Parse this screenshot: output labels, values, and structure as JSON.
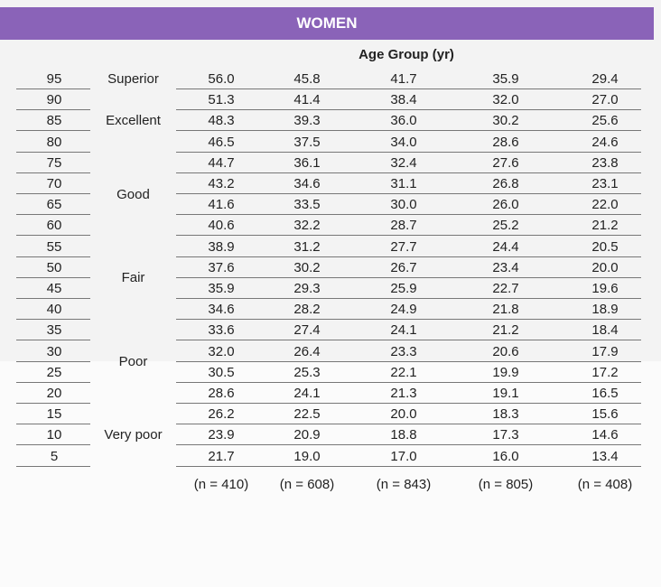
{
  "header": {
    "title": "WOMEN",
    "subtitle": "Age Group (yr)"
  },
  "table": {
    "rows": [
      {
        "percentile": 95,
        "rating": "Superior",
        "values": [
          "56.0",
          "45.8",
          "41.7",
          "35.9",
          "29.4"
        ]
      },
      {
        "percentile": 90,
        "rating": "Excellent",
        "values": [
          "51.3",
          "41.4",
          "38.4",
          "32.0",
          "27.0"
        ]
      },
      {
        "percentile": 85,
        "values": [
          "48.3",
          "39.3",
          "36.0",
          "30.2",
          "25.6"
        ]
      },
      {
        "percentile": 80,
        "values": [
          "46.5",
          "37.5",
          "34.0",
          "28.6",
          "24.6"
        ]
      },
      {
        "percentile": 75,
        "rating": "Good",
        "values": [
          "44.7",
          "36.1",
          "32.4",
          "27.6",
          "23.8"
        ]
      },
      {
        "percentile": 70,
        "values": [
          "43.2",
          "34.6",
          "31.1",
          "26.8",
          "23.1"
        ]
      },
      {
        "percentile": 65,
        "values": [
          "41.6",
          "33.5",
          "30.0",
          "26.0",
          "22.0"
        ]
      },
      {
        "percentile": 60,
        "values": [
          "40.6",
          "32.2",
          "28.7",
          "25.2",
          "21.2"
        ]
      },
      {
        "percentile": 55,
        "rating": "Fair",
        "values": [
          "38.9",
          "31.2",
          "27.7",
          "24.4",
          "20.5"
        ]
      },
      {
        "percentile": 50,
        "values": [
          "37.6",
          "30.2",
          "26.7",
          "23.4",
          "20.0"
        ]
      },
      {
        "percentile": 45,
        "values": [
          "35.9",
          "29.3",
          "25.9",
          "22.7",
          "19.6"
        ]
      },
      {
        "percentile": 40,
        "values": [
          "34.6",
          "28.2",
          "24.9",
          "21.8",
          "18.9"
        ]
      },
      {
        "percentile": 35,
        "rating": "Poor",
        "values": [
          "33.6",
          "27.4",
          "24.1",
          "21.2",
          "18.4"
        ]
      },
      {
        "percentile": 30,
        "values": [
          "32.0",
          "26.4",
          "23.3",
          "20.6",
          "17.9"
        ]
      },
      {
        "percentile": 25,
        "values": [
          "30.5",
          "25.3",
          "22.1",
          "19.9",
          "17.2"
        ]
      },
      {
        "percentile": 20,
        "values": [
          "28.6",
          "24.1",
          "21.3",
          "19.1",
          "16.5"
        ]
      },
      {
        "percentile": 15,
        "rating": "Very poor",
        "values": [
          "26.2",
          "22.5",
          "20.0",
          "18.3",
          "15.6"
        ]
      },
      {
        "percentile": 10,
        "values": [
          "23.9",
          "20.9",
          "18.8",
          "17.3",
          "14.6"
        ]
      },
      {
        "percentile": 5,
        "values": [
          "21.7",
          "19.0",
          "17.0",
          "16.0",
          "13.4"
        ]
      }
    ],
    "sample_sizes": [
      "(n = 410)",
      "(n = 608)",
      "(n = 843)",
      "(n = 805)",
      "(n = 408)"
    ]
  }
}
